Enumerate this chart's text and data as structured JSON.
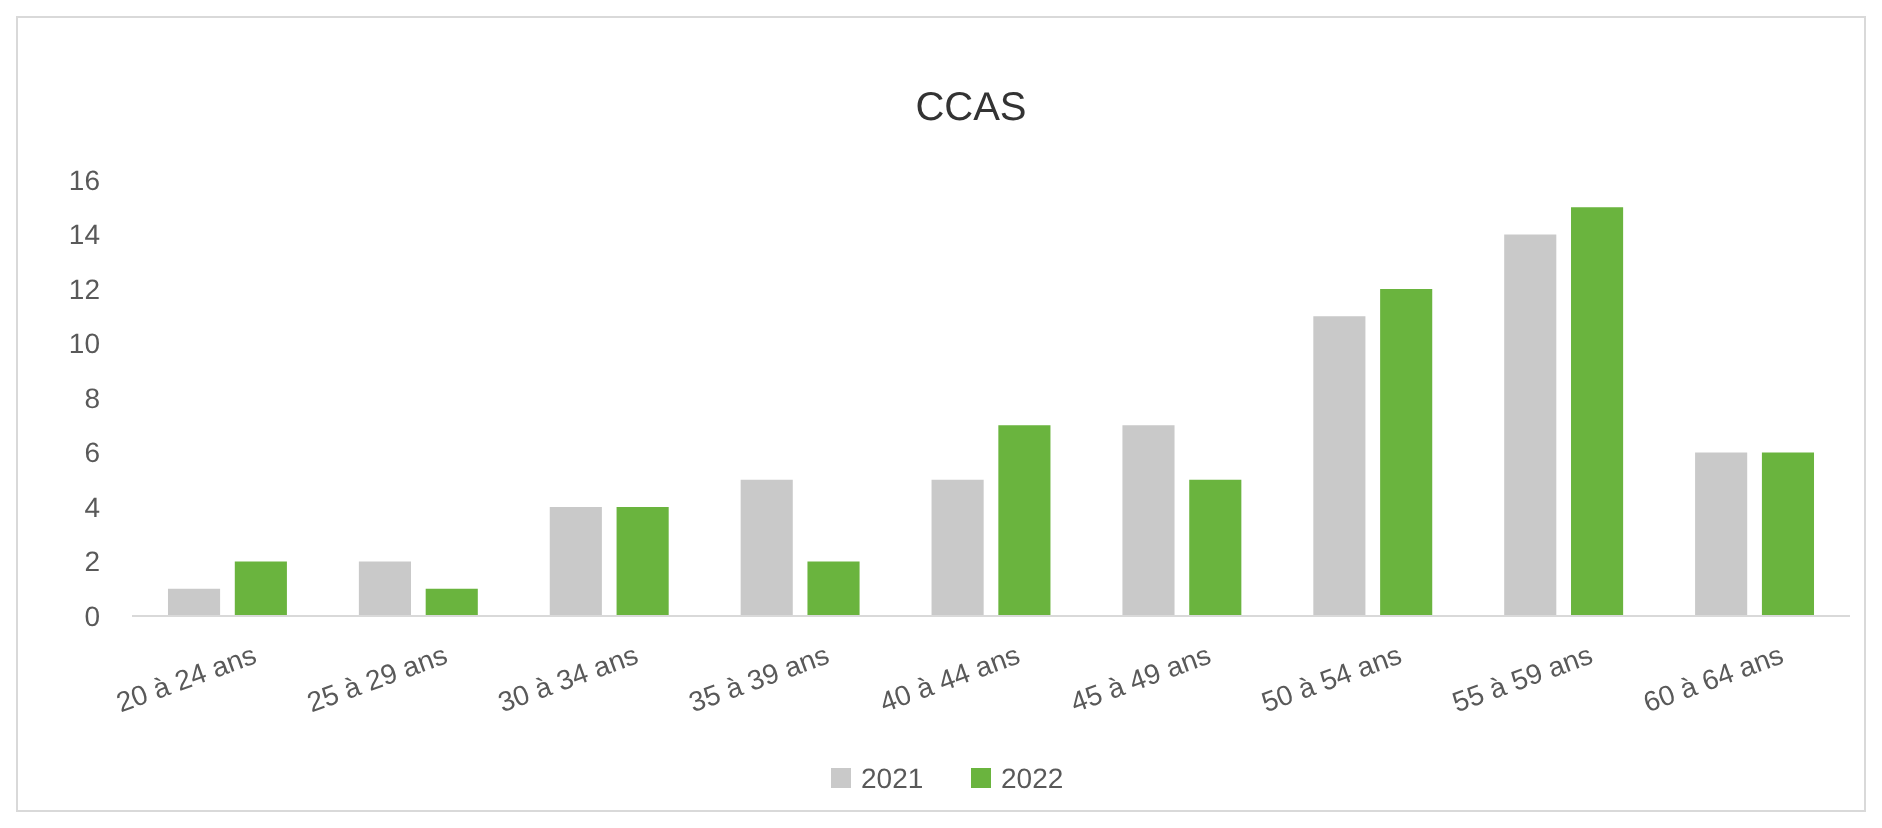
{
  "chart_data": {
    "type": "bar",
    "title": "CCAS",
    "categories": [
      "20 à 24 ans",
      "25 à 29 ans",
      "30 à 34 ans",
      "35 à 39 ans",
      "40 à 44 ans",
      "45 à 49 ans",
      "50 à 54 ans",
      "55 à 59 ans",
      "60 à 64 ans"
    ],
    "series": [
      {
        "name": "2021",
        "color": "#c9c9c9",
        "values": [
          1,
          2,
          4,
          5,
          5,
          7,
          11,
          14,
          6
        ]
      },
      {
        "name": "2022",
        "color": "#6ab43e",
        "values": [
          2,
          1,
          4,
          2,
          7,
          5,
          12,
          15,
          6
        ]
      }
    ],
    "ylim": [
      0,
      16
    ],
    "yticks": [
      0,
      2,
      4,
      6,
      8,
      10,
      12,
      14,
      16
    ],
    "grid": false,
    "legend": "bottom"
  }
}
